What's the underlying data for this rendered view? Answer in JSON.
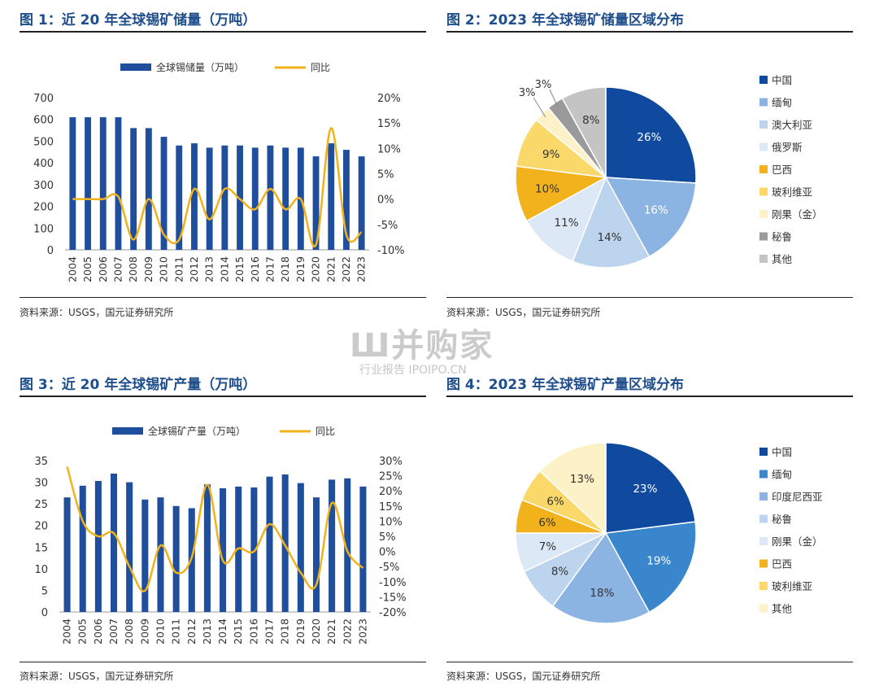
{
  "fig1": {
    "title": "图 1：近 20 年全球锡矿储量（万吨）",
    "source": "资料来源：USGS，国元证券研究所"
  },
  "fig2": {
    "title": "图 2：2023 年全球锡矿储量区域分布",
    "source": "资料来源：USGS，国元证券研究所"
  },
  "fig3": {
    "title": "图 3：近 20 年全球锡矿产量（万吨）",
    "source": "资料来源：USGS，国元证券研究所"
  },
  "fig4": {
    "title": "图 4：2023 年全球锡矿产量区域分布",
    "source": "资料来源：USGS，国元证券研究所"
  },
  "watermark": {
    "logo": "Ш并购家",
    "sub": "行业报告 IPOIPO.CN"
  },
  "chart_data": [
    {
      "id": "fig1",
      "type": "bar",
      "categories": [
        "2004",
        "2005",
        "2006",
        "2007",
        "2008",
        "2009",
        "2010",
        "2011",
        "2012",
        "2013",
        "2014",
        "2015",
        "2016",
        "2017",
        "2018",
        "2019",
        "2020",
        "2021",
        "2022",
        "2023"
      ],
      "series": [
        {
          "name": "全球锡储量（万吨）",
          "type": "bar",
          "axis": "left",
          "color": "#1f4e9c",
          "values": [
            610,
            610,
            610,
            610,
            560,
            560,
            520,
            480,
            490,
            470,
            480,
            480,
            470,
            480,
            470,
            470,
            430,
            490,
            460,
            430
          ]
        },
        {
          "name": "同比",
          "type": "line",
          "axis": "right",
          "color": "#f2b21b",
          "values": [
            0,
            0,
            0,
            0.5,
            -8,
            0,
            -7,
            -8,
            2,
            -4,
            2,
            0,
            -2,
            2,
            -2,
            0,
            -9,
            14,
            -7,
            -6.5
          ]
        }
      ],
      "left_axis": {
        "min": 0,
        "max": 700,
        "step": 100,
        "ticks": [
          "0",
          "100",
          "200",
          "300",
          "400",
          "500",
          "600",
          "700"
        ]
      },
      "right_axis": {
        "min": -10,
        "max": 20,
        "step": 5,
        "ticks": [
          "-10%",
          "-5%",
          "0%",
          "5%",
          "10%",
          "15%",
          "20%"
        ]
      },
      "legend_position": "top-center",
      "grid": false
    },
    {
      "id": "fig2",
      "type": "pie",
      "slices": [
        {
          "label": "中国",
          "value": 26,
          "display": "26%",
          "color": "#0f4a9e",
          "text_color": "#ffffff"
        },
        {
          "label": "缅甸",
          "value": 16,
          "display": "16%",
          "color": "#8cb4e2",
          "text_color": "#ffffff"
        },
        {
          "label": "澳大利亚",
          "value": 14,
          "display": "14%",
          "color": "#bcd4ee",
          "text_color": "#333333"
        },
        {
          "label": "俄罗斯",
          "value": 11,
          "display": "11%",
          "color": "#dde8f6",
          "text_color": "#333333"
        },
        {
          "label": "巴西",
          "value": 10,
          "display": "10%",
          "color": "#f2b21b",
          "text_color": "#333333"
        },
        {
          "label": "玻利维亚",
          "value": 9,
          "display": "9%",
          "color": "#fbd86a",
          "text_color": "#333333"
        },
        {
          "label": "刚果（金）",
          "value": 3,
          "display": "3%",
          "color": "#fdf1c8",
          "text_color": "#333333",
          "outside": true
        },
        {
          "label": "秘鲁",
          "value": 3,
          "display": "3%",
          "color": "#9a9a9a",
          "text_color": "#333333",
          "outside": true
        },
        {
          "label": "其他",
          "value": 8,
          "display": "8%",
          "color": "#c4c4c4",
          "text_color": "#333333"
        }
      ],
      "legend_position": "right"
    },
    {
      "id": "fig3",
      "type": "bar",
      "categories": [
        "2004",
        "2005",
        "2006",
        "2007",
        "2008",
        "2009",
        "2010",
        "2011",
        "2012",
        "2013",
        "2014",
        "2015",
        "2016",
        "2017",
        "2018",
        "2019",
        "2020",
        "2021",
        "2022",
        "2023"
      ],
      "series": [
        {
          "name": "全球锡矿产量（万吨）",
          "type": "bar",
          "axis": "left",
          "color": "#1f4e9c",
          "values": [
            26.5,
            29.2,
            30.3,
            32,
            30,
            26,
            26.5,
            24.5,
            24,
            29.5,
            28.6,
            29,
            28.8,
            31.3,
            31.8,
            29.8,
            26.5,
            30.6,
            30.9,
            29
          ]
        },
        {
          "name": "同比",
          "type": "line",
          "axis": "right",
          "color": "#f2b21b",
          "values": [
            28,
            10,
            5,
            6,
            -5,
            -13,
            2,
            -7,
            -2,
            22,
            -3,
            1,
            0,
            9,
            2,
            -7,
            -11,
            16,
            0,
            -5.5
          ]
        }
      ],
      "left_axis": {
        "min": 0,
        "max": 35,
        "step": 5,
        "ticks": [
          "0",
          "5",
          "10",
          "15",
          "20",
          "25",
          "30",
          "35"
        ]
      },
      "right_axis": {
        "min": -20,
        "max": 30,
        "step": 5,
        "ticks": [
          "-20%",
          "-15%",
          "-10%",
          "-5%",
          "0%",
          "5%",
          "10%",
          "15%",
          "20%",
          "25%",
          "30%"
        ]
      },
      "legend_position": "top-center",
      "grid": false
    },
    {
      "id": "fig4",
      "type": "pie",
      "slices": [
        {
          "label": "中国",
          "value": 23,
          "display": "23%",
          "color": "#0f4a9e",
          "text_color": "#ffffff"
        },
        {
          "label": "缅甸",
          "value": 19,
          "display": "19%",
          "color": "#3a86cc",
          "text_color": "#ffffff"
        },
        {
          "label": "印度尼西亚",
          "value": 18,
          "display": "18%",
          "color": "#8cb4e2",
          "text_color": "#333333"
        },
        {
          "label": "秘鲁",
          "value": 8,
          "display": "8%",
          "color": "#bcd4ee",
          "text_color": "#333333"
        },
        {
          "label": "刚果（金）",
          "value": 7,
          "display": "7%",
          "color": "#dde8f6",
          "text_color": "#333333"
        },
        {
          "label": "巴西",
          "value": 6,
          "display": "6%",
          "color": "#f2b21b",
          "text_color": "#333333"
        },
        {
          "label": "玻利维亚",
          "value": 6,
          "display": "6%",
          "color": "#fbd86a",
          "text_color": "#333333"
        },
        {
          "label": "其他",
          "value": 13,
          "display": "13%",
          "color": "#fdf1c8",
          "text_color": "#333333"
        }
      ],
      "legend_position": "right"
    }
  ]
}
